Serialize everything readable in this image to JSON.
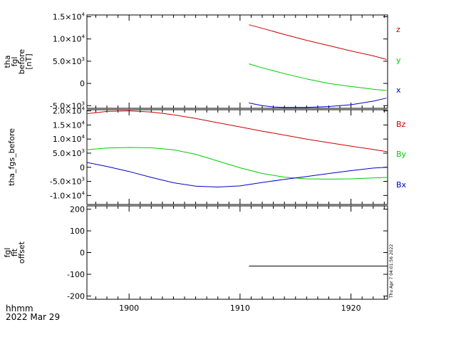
{
  "chart_data": {
    "type": "line",
    "x_range": [
      1896.2,
      1923.3
    ],
    "x_ticks": [
      1900,
      1910,
      1920
    ],
    "x_tick_labels": [
      "1900",
      "1910",
      "1920"
    ],
    "footer": {
      "line1": "hhmm",
      "line2": "2022 Mar 29"
    },
    "timestamp": "Thu Apr  7 04:01:56 2022",
    "panels": [
      {
        "ylabel": [
          "tha",
          "fgl",
          "before",
          "[nT]"
        ],
        "ylim": [
          -5600,
          15400
        ],
        "yticks": [
          {
            "value": 15000,
            "mant": "1.5×10",
            "exp": "4"
          },
          {
            "value": 10000,
            "mant": "1.0×10",
            "exp": "4"
          },
          {
            "value": 5000,
            "mant": "5.0×10",
            "exp": "3"
          },
          {
            "value": 0,
            "mant": "0",
            "exp": ""
          },
          {
            "value": -5000,
            "mant": "-5.0×10",
            "exp": "3"
          }
        ],
        "series": [
          {
            "name": "z",
            "color": "#cc0000",
            "x": [
              1910.8,
              1912,
              1914,
              1916,
              1918,
              1920,
              1922,
              1923.2
            ],
            "y": [
              13200,
              12400,
              11000,
              9700,
              8500,
              7300,
              6200,
              5400
            ]
          },
          {
            "name": "y",
            "color": "#00cc00",
            "x": [
              1910.8,
              1912,
              1914,
              1916,
              1918,
              1920,
              1922,
              1923.2
            ],
            "y": [
              4400,
              3500,
              2200,
              1000,
              0,
              -700,
              -1300,
              -1600
            ]
          },
          {
            "name": "x",
            "color": "#0000cc",
            "x": [
              1910.8,
              1912,
              1913,
              1914,
              1916,
              1918,
              1920,
              1922,
              1923.2
            ],
            "y": [
              -4400,
              -5000,
              -5300,
              -5400,
              -5400,
              -5200,
              -4800,
              -4000,
              -3300
            ]
          }
        ]
      },
      {
        "ylabel": [
          "tha_fgs_before"
        ],
        "ylim": [
          -13200,
          20400
        ],
        "yticks": [
          {
            "value": 20000,
            "mant": "2.0×10",
            "exp": "4"
          },
          {
            "value": 15000,
            "mant": "1.5×10",
            "exp": "4"
          },
          {
            "value": 10000,
            "mant": "1.0×10",
            "exp": "4"
          },
          {
            "value": 5000,
            "mant": "5.0×10",
            "exp": "3"
          },
          {
            "value": 0,
            "mant": "0",
            "exp": ""
          },
          {
            "value": -5000,
            "mant": "-5.0×10",
            "exp": "3"
          },
          {
            "value": -10000,
            "mant": "-1.0×10",
            "exp": "4"
          }
        ],
        "series": [
          {
            "name": "Bz",
            "color": "#cc0000",
            "x": [
              1896.2,
              1898,
              1900,
              1902,
              1904,
              1906,
              1908,
              1910,
              1912,
              1914,
              1916,
              1918,
              1920,
              1922,
              1923.3
            ],
            "y": [
              19000,
              19800,
              20000,
              19600,
              18600,
              17300,
              15800,
              14300,
              12800,
              11400,
              10000,
              8700,
              7500,
              6300,
              5500
            ]
          },
          {
            "name": "By",
            "color": "#00cc00",
            "x": [
              1896.2,
              1898,
              1900,
              1902,
              1904,
              1906,
              1908,
              1910,
              1912,
              1914,
              1916,
              1918,
              1920,
              1922,
              1923.3
            ],
            "y": [
              6200,
              6800,
              7000,
              6900,
              6200,
              4600,
              2200,
              -200,
              -2200,
              -3500,
              -4100,
              -4200,
              -4100,
              -3800,
              -3600
            ]
          },
          {
            "name": "Bx",
            "color": "#0000cc",
            "x": [
              1896.2,
              1898,
              1900,
              1902,
              1904,
              1906,
              1908,
              1910,
              1912,
              1914,
              1916,
              1918,
              1920,
              1922,
              1923.3
            ],
            "y": [
              1700,
              300,
              -1500,
              -3600,
              -5500,
              -6700,
              -7000,
              -6600,
              -5400,
              -4300,
              -3300,
              -2200,
              -1200,
              -300,
              0
            ]
          }
        ]
      },
      {
        "ylabel": [
          "fgl",
          "fit",
          "offset"
        ],
        "ylim": [
          -215,
          215
        ],
        "yticks": [
          {
            "value": 200,
            "mant": "200",
            "exp": ""
          },
          {
            "value": 100,
            "mant": "100",
            "exp": ""
          },
          {
            "value": 0,
            "mant": "0",
            "exp": ""
          },
          {
            "value": -100,
            "mant": "-100",
            "exp": ""
          },
          {
            "value": -200,
            "mant": "-200",
            "exp": ""
          }
        ],
        "series": [
          {
            "name": "",
            "color": "#000000",
            "x": [
              1910.8,
              1923.3
            ],
            "y": [
              -62,
              -62
            ]
          }
        ]
      }
    ]
  }
}
